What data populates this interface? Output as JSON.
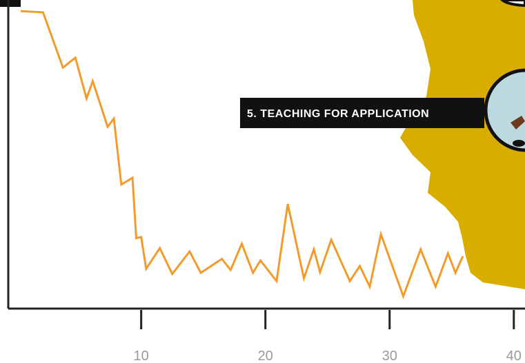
{
  "chart_data": {
    "type": "line",
    "annotation": "5. TEACHING FOR APPLICATION",
    "x": [
      0.3,
      2.1,
      3.7,
      4.7,
      5.6,
      6.1,
      7.3,
      7.8,
      8.4,
      9.3,
      9.6,
      10.0,
      10.4,
      11.5,
      12.5,
      13.9,
      14.8,
      16.5,
      17.2,
      18.1,
      19.0,
      19.6,
      20.9,
      21.8,
      23.1,
      23.9,
      24.4,
      25.3,
      26.8,
      27.6,
      28.4,
      29.3,
      31.1,
      32.5,
      33.7,
      34.7,
      35.3,
      35.9
    ],
    "series": [
      {
        "color": "#f39a2b",
        "values": [
          96.4,
          96.0,
          78.1,
          81.3,
          68.1,
          73.7,
          58.9,
          61.6,
          40.2,
          42.4,
          22.8,
          23.2,
          12.9,
          19.6,
          11.2,
          18.5,
          11.6,
          16.1,
          12.5,
          21.0,
          11.6,
          15.6,
          8.9,
          33.9,
          9.8,
          19.2,
          11.8,
          22.3,
          8.9,
          13.8,
          7.1,
          24.1,
          4.0,
          19.2,
          7.1,
          17.9,
          11.6,
          17.0
        ]
      }
    ],
    "xlim": [
      -0.7,
      40.9
    ],
    "ylim": [
      0,
      100
    ],
    "xticks": [
      10,
      20,
      30,
      40
    ]
  }
}
